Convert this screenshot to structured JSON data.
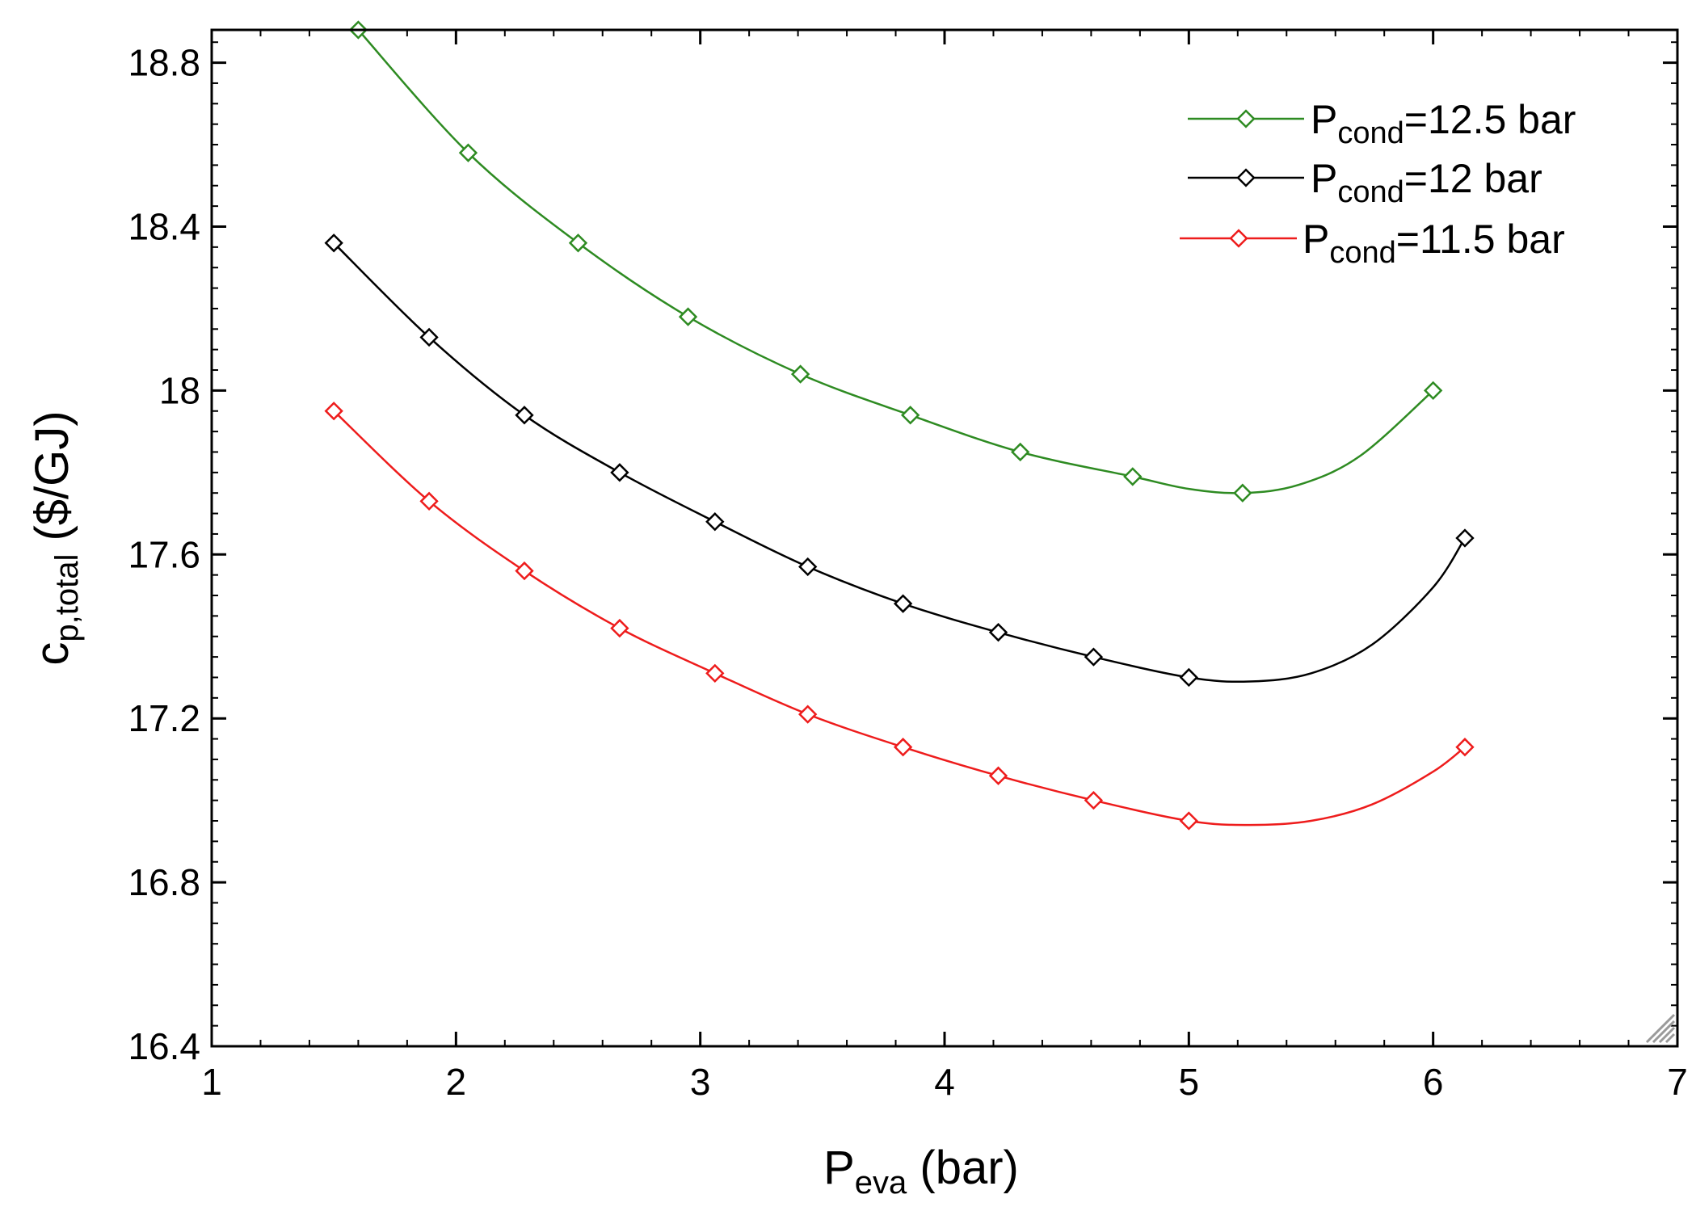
{
  "chart_data": {
    "type": "line",
    "title": "",
    "xlabel": {
      "main": "P",
      "sub": "eva",
      "rest": " (bar)"
    },
    "ylabel": {
      "main": "c",
      "sub": "p,total",
      "rest": "  ($/GJ)"
    },
    "xlim": [
      1,
      7
    ],
    "ylim": [
      16.4,
      18.88
    ],
    "x_major_ticks": [
      1,
      2,
      3,
      4,
      5,
      6,
      7
    ],
    "x_tick_labels": [
      "1",
      "2",
      "3",
      "4",
      "5",
      "6",
      "7"
    ],
    "y_major_ticks": [
      16.4,
      16.8,
      17.2,
      17.6,
      18.0,
      18.4,
      18.8
    ],
    "y_tick_labels": [
      "16.4",
      "16.8",
      "17.2",
      "17.6",
      "18",
      "18.4",
      "18.8"
    ],
    "legend_position": "top-right",
    "series": [
      {
        "name": "Pcond=12.5 bar",
        "label_main": "P",
        "label_sub": "cond",
        "label_rest": "=12.5 bar",
        "color": "#2e8b22",
        "markers": {
          "x": [
            1.6,
            2.05,
            2.5,
            2.95,
            3.41,
            3.86,
            4.31,
            4.77,
            5.22,
            6.0
          ],
          "y": [
            18.88,
            18.58,
            18.36,
            18.18,
            18.04,
            17.94,
            17.85,
            17.79,
            17.75,
            18.0
          ]
        },
        "curve": {
          "x": [
            1.6,
            2.05,
            2.5,
            2.95,
            3.41,
            3.86,
            4.31,
            4.77,
            5.0,
            5.22,
            5.45,
            5.7,
            6.0
          ],
          "y": [
            18.88,
            18.58,
            18.36,
            18.18,
            18.04,
            17.94,
            17.85,
            17.79,
            17.76,
            17.75,
            17.77,
            17.84,
            18.0
          ]
        }
      },
      {
        "name": "Pcond=12 bar",
        "label_main": "P",
        "label_sub": "cond",
        "label_rest": "=12 bar",
        "color": "#000000",
        "markers": {
          "x": [
            1.5,
            1.89,
            2.28,
            2.67,
            3.06,
            3.44,
            3.83,
            4.22,
            4.61,
            5.0,
            6.13
          ],
          "y": [
            18.36,
            18.13,
            17.94,
            17.8,
            17.68,
            17.57,
            17.48,
            17.41,
            17.35,
            17.3,
            17.64
          ]
        },
        "curve": {
          "x": [
            1.5,
            1.89,
            2.28,
            2.67,
            3.06,
            3.44,
            3.83,
            4.22,
            4.61,
            5.0,
            5.25,
            5.5,
            5.75,
            6.0,
            6.13
          ],
          "y": [
            18.36,
            18.13,
            17.94,
            17.8,
            17.68,
            17.57,
            17.48,
            17.41,
            17.35,
            17.3,
            17.29,
            17.31,
            17.38,
            17.52,
            17.64
          ]
        }
      },
      {
        "name": "Pcond=11.5 bar",
        "label_main": "P",
        "label_sub": "cond",
        "label_rest": "=11.5 bar",
        "color": "#ee1c1c",
        "markers": {
          "x": [
            1.5,
            1.89,
            2.28,
            2.67,
            3.06,
            3.44,
            3.83,
            4.22,
            4.61,
            5.0,
            6.13
          ],
          "y": [
            17.95,
            17.73,
            17.56,
            17.42,
            17.31,
            17.21,
            17.13,
            17.06,
            17.0,
            16.95,
            17.13
          ]
        },
        "curve": {
          "x": [
            1.5,
            1.89,
            2.28,
            2.67,
            3.06,
            3.44,
            3.83,
            4.22,
            4.61,
            5.0,
            5.25,
            5.5,
            5.75,
            6.0,
            6.13
          ],
          "y": [
            17.95,
            17.73,
            17.56,
            17.42,
            17.31,
            17.21,
            17.13,
            17.06,
            17.0,
            16.95,
            16.94,
            16.95,
            16.99,
            17.07,
            17.13
          ]
        }
      }
    ]
  }
}
